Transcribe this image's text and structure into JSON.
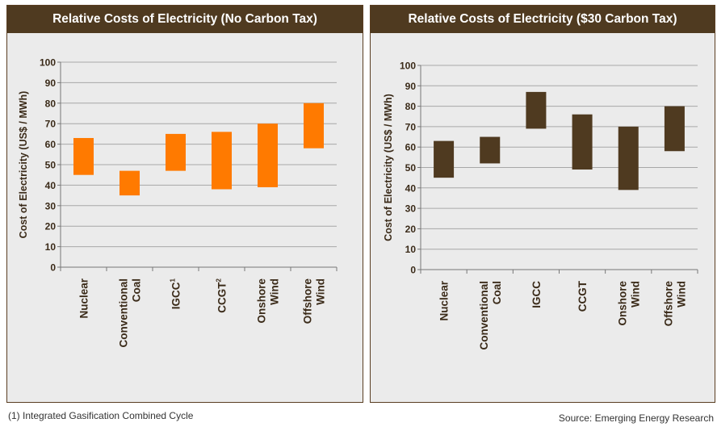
{
  "chart_data": [
    {
      "type": "bar",
      "title": "Relative Costs of Electricity (No Carbon Tax)",
      "ylabel": "Cost of Electricity (US$ / MWh)",
      "ylim": [
        0,
        100
      ],
      "yticks": [
        "0",
        "10",
        "20",
        "30",
        "40",
        "50",
        "60",
        "70",
        "80",
        "90",
        "100"
      ],
      "categories": [
        {
          "lines": [
            "Nuclear"
          ],
          "sup": ""
        },
        {
          "lines": [
            "Conventional",
            "Coal"
          ],
          "sup": ""
        },
        {
          "lines": [
            "IGCC"
          ],
          "sup": "1"
        },
        {
          "lines": [
            "CCGT"
          ],
          "sup": "2"
        },
        {
          "lines": [
            "Onshore",
            "Wind"
          ],
          "sup": ""
        },
        {
          "lines": [
            "Offshore",
            "Wind"
          ],
          "sup": ""
        }
      ],
      "ranges": [
        [
          45,
          63
        ],
        [
          35,
          47
        ],
        [
          47,
          65
        ],
        [
          38,
          66
        ],
        [
          39,
          70
        ],
        [
          58,
          80
        ]
      ],
      "bar_color": "#ff7a00",
      "grid": true
    },
    {
      "type": "bar",
      "title": "Relative Costs of Electricity ($30 Carbon Tax)",
      "ylabel": "Cost of Electricity (US$ / MWh)",
      "ylim": [
        0,
        100
      ],
      "yticks": [
        "0",
        "10",
        "20",
        "30",
        "40",
        "50",
        "60",
        "70",
        "80",
        "90",
        "100"
      ],
      "categories": [
        {
          "lines": [
            "Nuclear"
          ],
          "sup": ""
        },
        {
          "lines": [
            "Conventional",
            "Coal"
          ],
          "sup": ""
        },
        {
          "lines": [
            "IGCC"
          ],
          "sup": ""
        },
        {
          "lines": [
            "CCGT"
          ],
          "sup": ""
        },
        {
          "lines": [
            "Onshore",
            "Wind"
          ],
          "sup": ""
        },
        {
          "lines": [
            "Offshore",
            "Wind"
          ],
          "sup": ""
        }
      ],
      "ranges": [
        [
          45,
          63
        ],
        [
          52,
          65
        ],
        [
          69,
          87
        ],
        [
          49,
          76
        ],
        [
          39,
          70
        ],
        [
          58,
          80
        ]
      ],
      "bar_color": "#4f3a20",
      "grid": true
    }
  ],
  "footnote": "(1) Integrated Gasification Combined Cycle",
  "source": "Source: Emerging Energy Research"
}
